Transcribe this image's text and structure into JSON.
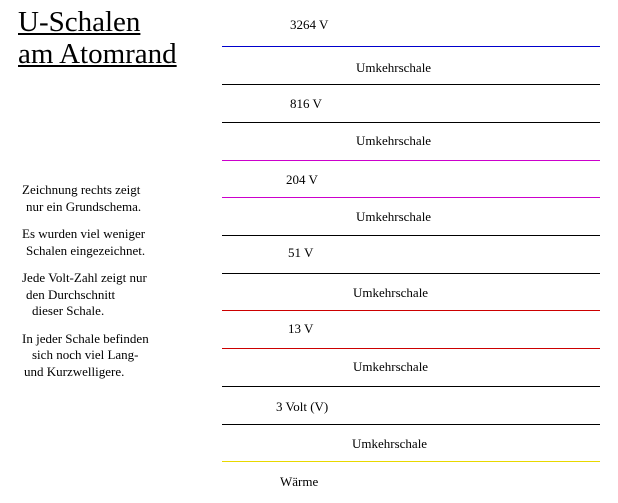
{
  "title": {
    "line1": "U-Schalen",
    "line2": "am Atomrand"
  },
  "notes": [
    {
      "lines": [
        "Zeichnung rechts zeigt",
        "nur ein Grundschema."
      ]
    },
    {
      "lines": [
        "Es wurden viel weniger",
        "Schalen eingezeichnet."
      ]
    },
    {
      "lines": [
        "Jede Volt-Zahl zeigt nur",
        "den Durchschnitt",
        "dieser Schale."
      ]
    },
    {
      "lines": [
        "In jeder Schale befinden",
        "sich noch viel Lang-",
        "und Kurzwelligere."
      ]
    }
  ],
  "diagram": {
    "levels": [
      {
        "label": "3264 V",
        "type": "shell"
      },
      {
        "label": "Umkehrschale",
        "type": "reversal"
      },
      {
        "label": "816 V",
        "type": "shell"
      },
      {
        "label": "Umkehrschale",
        "type": "reversal"
      },
      {
        "label": "204 V",
        "type": "shell"
      },
      {
        "label": "Umkehrschale",
        "type": "reversal"
      },
      {
        "label": "51 V",
        "type": "shell"
      },
      {
        "label": "Umkehrschale",
        "type": "reversal"
      },
      {
        "label": "13 V",
        "type": "shell"
      },
      {
        "label": "Umkehrschale",
        "type": "reversal"
      },
      {
        "label": "3 Volt (V)",
        "type": "shell"
      },
      {
        "label": "Umkehrschale",
        "type": "reversal"
      },
      {
        "label": "Wärme",
        "type": "shell"
      }
    ],
    "line_colors": [
      "#0000cc",
      "#000000",
      "#000000",
      "#cc00cc",
      "#cc00cc",
      "#000000",
      "#000000",
      "#cc0000",
      "#cc0000",
      "#000000",
      "#000000",
      "#e8d800"
    ]
  }
}
